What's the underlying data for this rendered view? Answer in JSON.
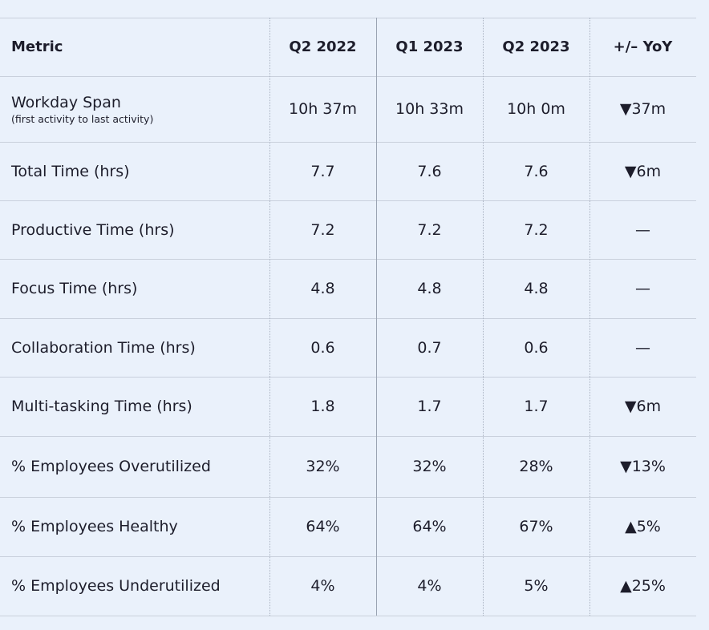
{
  "table": {
    "header": [
      "Metric",
      "Q2 2022",
      "Q1 2023",
      "Q2 2023",
      "+/– YoY"
    ],
    "rows": [
      {
        "label": "Workday Span",
        "sublabel": "(first activity to last activity)",
        "cells": [
          "10h 37m",
          "10h 33m",
          "10h 0m",
          "▼37m"
        ]
      },
      {
        "label": "Total Time (hrs)",
        "cells": [
          "7.7",
          "7.6",
          "7.6",
          "▼6m"
        ]
      },
      {
        "label": "Productive Time (hrs)",
        "cells": [
          "7.2",
          "7.2",
          "7.2",
          "—"
        ]
      },
      {
        "label": "Focus Time (hrs)",
        "cells": [
          "4.8",
          "4.8",
          "4.8",
          "—"
        ]
      },
      {
        "label": "Collaboration Time (hrs)",
        "cells": [
          "0.6",
          "0.7",
          "0.6",
          "—"
        ]
      },
      {
        "label": "Multi-tasking Time (hrs)",
        "cells": [
          "1.8",
          "1.7",
          "1.7",
          "▼6m"
        ]
      },
      {
        "label": "% Employees Overutilized",
        "cells": [
          "32%",
          "32%",
          "28%",
          "▼13%"
        ]
      },
      {
        "label": "% Employees Healthy",
        "cells": [
          "64%",
          "64%",
          "67%",
          "▲5%"
        ]
      },
      {
        "label": "% Employees Underutilized",
        "cells": [
          "4%",
          "4%",
          "5%",
          "▲25%"
        ]
      }
    ]
  }
}
